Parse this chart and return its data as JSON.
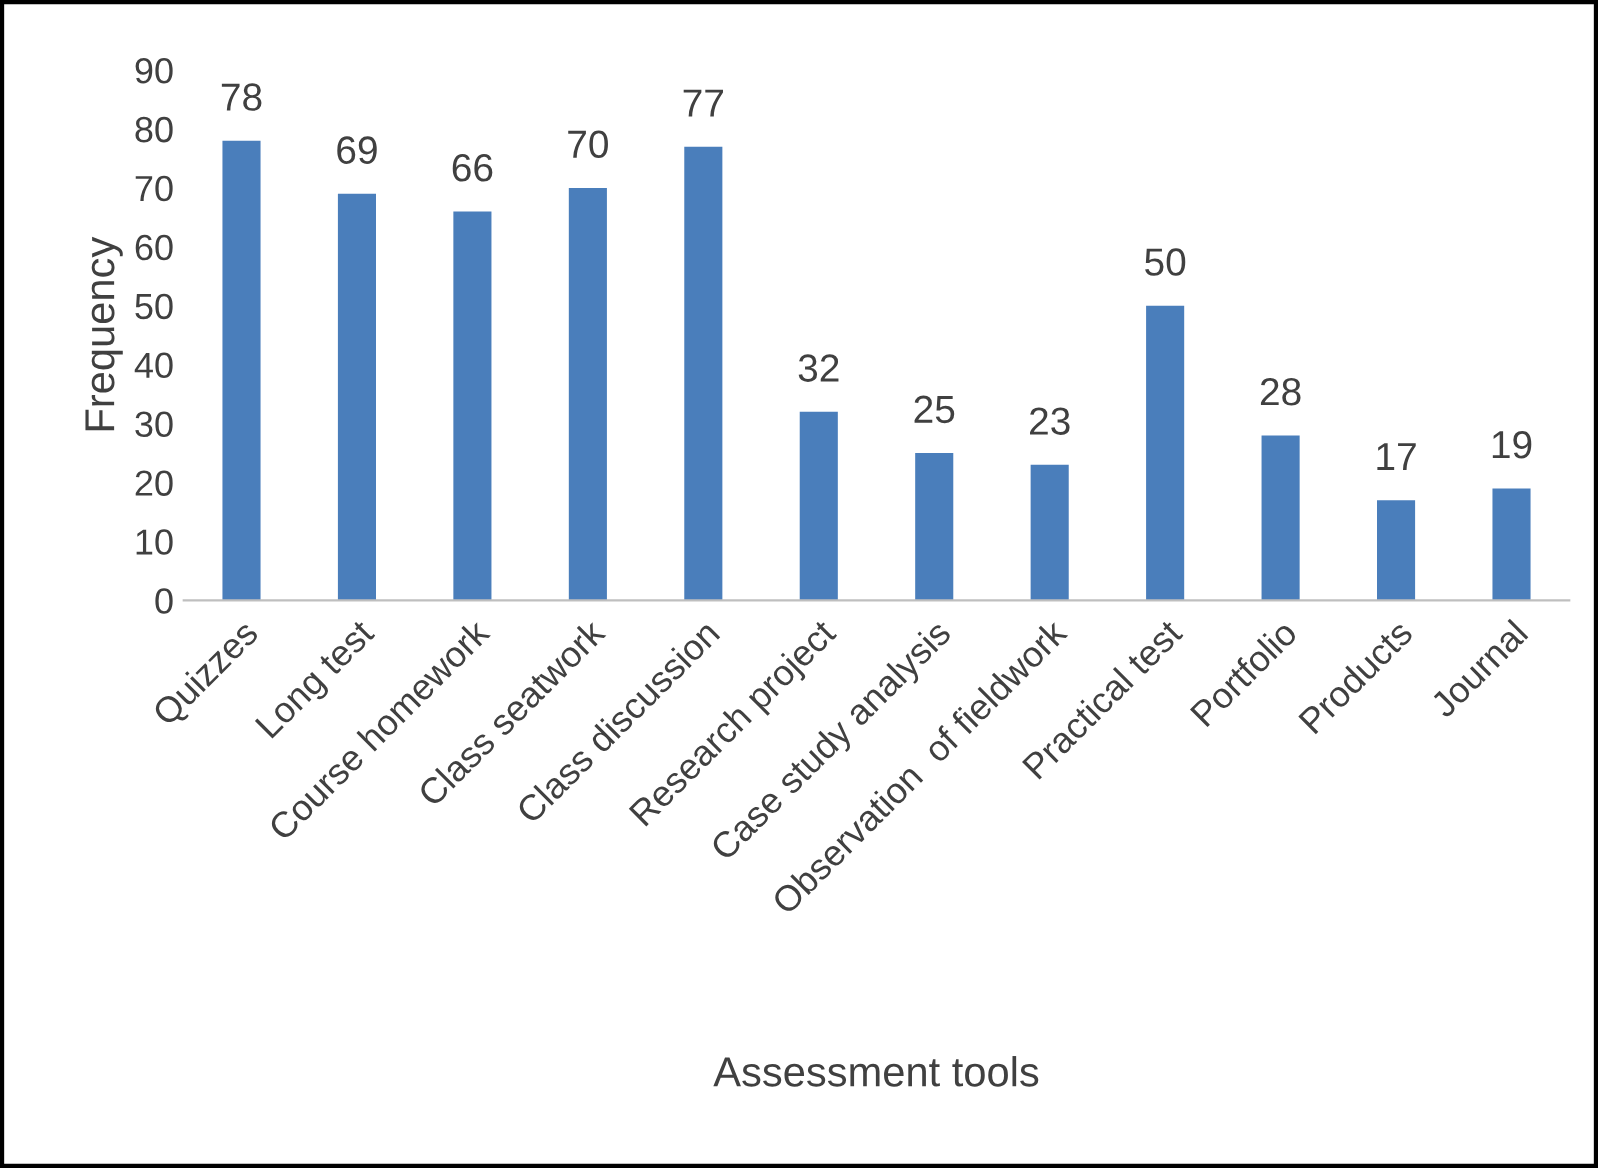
{
  "chart_data": {
    "type": "bar",
    "xlabel": "Assessment tools",
    "ylabel": "Frequency",
    "categories": [
      "Quizzes",
      "Long test",
      "Course homework",
      "Class seatwork",
      "Class discussion",
      "Research project",
      "Case study analysis",
      "Observation  of fieldwork",
      "Practical test",
      "Portfolio",
      "Products",
      "Journal"
    ],
    "values": [
      78,
      69,
      66,
      70,
      77,
      32,
      25,
      23,
      50,
      28,
      17,
      19
    ],
    "color": "#4a7ebb",
    "ylim": [
      0,
      90
    ],
    "yticks": [
      0,
      10,
      20,
      30,
      40,
      50,
      60,
      70,
      80,
      90
    ],
    "data_labels": true,
    "grid": false,
    "legend": false
  }
}
